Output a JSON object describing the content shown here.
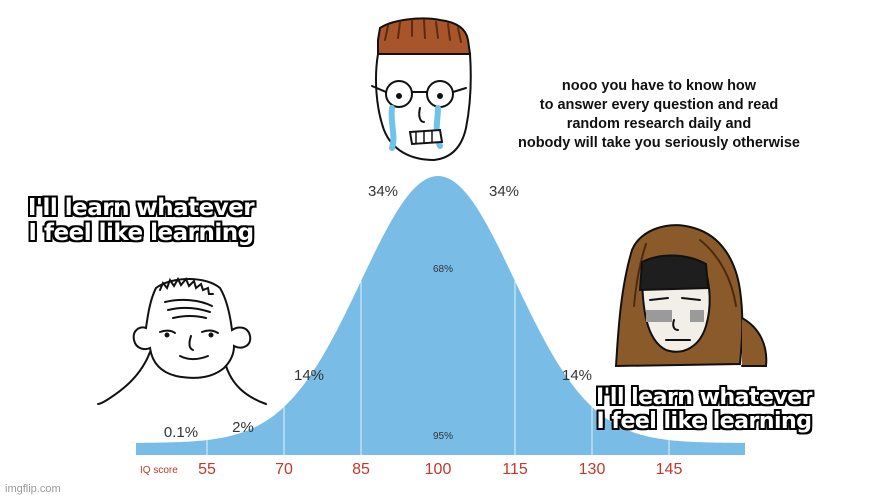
{
  "top_text": {
    "lines": [
      "nooo you have to know how",
      "to answer every question and read",
      "random research daily and",
      "nobody will take you seriously otherwise"
    ]
  },
  "caption_left": {
    "lines": [
      "I'll learn whatever",
      "I feel like learning"
    ]
  },
  "caption_right": {
    "lines": [
      "I'll learn whatever",
      "I feel like learning"
    ]
  },
  "curve": {
    "percent_labels": {
      "p01": "0.1%",
      "p2": "2%",
      "p14_left": "14%",
      "p14_right": "14%",
      "p34_left": "34%",
      "p34_right": "34%",
      "p68": "68%",
      "p95": "95%"
    },
    "axis_title": "IQ score",
    "ticks": [
      "55",
      "70",
      "85",
      "100",
      "115",
      "130",
      "145"
    ],
    "colors": {
      "fill": "#79bde6",
      "numbers": "#c0392b"
    }
  },
  "watermark": "imgflip.com"
}
